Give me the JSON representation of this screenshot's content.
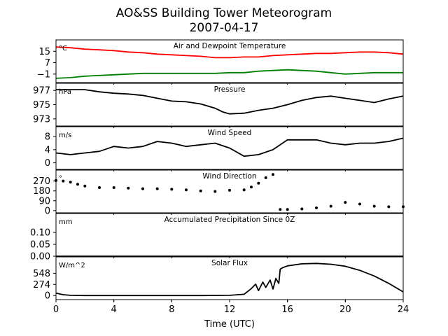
{
  "figure": {
    "title": "AO&SS Building Tower Meteorogram",
    "subtitle": "2007-04-17",
    "xlabel": "Time (UTC)",
    "xticks": [
      0,
      4,
      8,
      12,
      16,
      20,
      24
    ]
  },
  "chart_data": [
    {
      "type": "line",
      "title": "Air and Dewpoint Temperature",
      "unit": "°C",
      "xlabel": "Time (UTC)",
      "xlim": [
        0,
        24
      ],
      "ylim": [
        -7,
        23
      ],
      "yticks": [
        -1,
        7,
        15
      ],
      "series": [
        {
          "color": "#ff0000",
          "x": [
            0,
            1,
            2,
            3,
            4,
            5,
            6,
            7,
            8,
            9,
            10,
            11,
            12,
            13,
            14,
            15,
            16,
            17,
            18,
            19,
            20,
            21,
            22,
            23,
            24
          ],
          "values": [
            18,
            17.5,
            16.5,
            16,
            15.5,
            14.5,
            14,
            13,
            12.5,
            12,
            11.5,
            10.5,
            10.5,
            11,
            11,
            12,
            12.5,
            13,
            13.5,
            13.5,
            14,
            14.5,
            14.5,
            14,
            13
          ]
        },
        {
          "color": "#008000",
          "x": [
            0,
            1,
            2,
            3,
            4,
            5,
            6,
            7,
            8,
            9,
            10,
            11,
            12,
            13,
            14,
            15,
            16,
            17,
            18,
            19,
            20,
            21,
            22,
            23,
            24
          ],
          "values": [
            -4,
            -3.5,
            -2.5,
            -2,
            -1.5,
            -1,
            -0.5,
            -0.5,
            -0.5,
            -0.5,
            -0.5,
            -0.5,
            0,
            0,
            1,
            1.5,
            2,
            1.5,
            1,
            0,
            -1,
            -0.5,
            0,
            0,
            0
          ]
        }
      ]
    },
    {
      "type": "line",
      "title": "Pressure",
      "unit": "hPa",
      "xlim": [
        0,
        24
      ],
      "ylim": [
        972,
        978
      ],
      "yticks": [
        973,
        975,
        977
      ],
      "series": [
        {
          "color": "#000000",
          "x": [
            0,
            1,
            2,
            3,
            4,
            5,
            6,
            7,
            8,
            9,
            10,
            11,
            11.5,
            12,
            13,
            14,
            15,
            16,
            17,
            18,
            19,
            20,
            21,
            22,
            23,
            24
          ],
          "values": [
            977.1,
            977.1,
            977.1,
            976.8,
            976.6,
            976.5,
            976.3,
            975.9,
            975.5,
            975.4,
            975.1,
            974.5,
            974,
            973.7,
            973.8,
            974.2,
            974.5,
            975,
            975.6,
            976,
            976.2,
            975.9,
            975.6,
            975.3,
            975.8,
            976.2
          ]
        }
      ]
    },
    {
      "type": "line",
      "title": "Wind Speed",
      "unit": "m/s",
      "xlim": [
        0,
        24
      ],
      "ylim": [
        -2,
        11
      ],
      "yticks": [
        0,
        4,
        8
      ],
      "series": [
        {
          "color": "#000000",
          "x": [
            0,
            1,
            2,
            3,
            4,
            5,
            6,
            7,
            8,
            9,
            10,
            11,
            12,
            13,
            14,
            15,
            16,
            17,
            18,
            19,
            20,
            21,
            22,
            23,
            24
          ],
          "values": [
            3,
            2.5,
            3,
            3.5,
            5,
            4.5,
            5,
            6.5,
            6,
            5,
            5.5,
            6,
            4.5,
            2,
            2.5,
            4,
            7,
            7,
            7,
            6,
            5.5,
            6,
            6,
            6.5,
            7.5
          ]
        }
      ]
    },
    {
      "type": "scatter",
      "title": "Wind Direction",
      "unit": "°",
      "xlim": [
        0,
        24
      ],
      "ylim": [
        -20,
        370
      ],
      "yticks": [
        0,
        90,
        180,
        270
      ],
      "series": [
        {
          "color": "#000000",
          "x": [
            0,
            0.5,
            1,
            1.5,
            2,
            3,
            4,
            5,
            6,
            7,
            8,
            9,
            10,
            11,
            12,
            13,
            13.5,
            14,
            14.5,
            15,
            15.5,
            16,
            17,
            18,
            19,
            20,
            21,
            22,
            23,
            24
          ],
          "values": [
            275,
            270,
            260,
            240,
            225,
            210,
            210,
            205,
            200,
            200,
            195,
            190,
            180,
            175,
            185,
            190,
            215,
            250,
            300,
            330,
            10,
            10,
            15,
            25,
            40,
            75,
            60,
            40,
            35,
            35
          ]
        }
      ]
    },
    {
      "type": "line",
      "title": "Accumulated Precipitation Since 0Z",
      "unit": "mm",
      "xlim": [
        0,
        24
      ],
      "ylim": [
        0,
        0.18
      ],
      "yticks": [
        0.0,
        0.05,
        0.1
      ],
      "ytick_labels": [
        "0.00",
        "0.05",
        "0.10"
      ],
      "series": [
        {
          "color": "#000000",
          "x": [
            0,
            24
          ],
          "values": [
            0,
            0
          ]
        }
      ]
    },
    {
      "type": "line",
      "title": "Solar Flux",
      "unit": "W/m^2",
      "xlim": [
        0,
        24
      ],
      "ylim": [
        -100,
        950
      ],
      "yticks": [
        0,
        274,
        548
      ],
      "series": [
        {
          "color": "#000000",
          "x": [
            0,
            0.5,
            1,
            2,
            4,
            6,
            8,
            10,
            12,
            13,
            13.5,
            13.8,
            14,
            14.3,
            14.5,
            14.8,
            15,
            15.2,
            15.4,
            15.5,
            15.7,
            16,
            17,
            18,
            19,
            20,
            21,
            22,
            23,
            24
          ],
          "values": [
            60,
            20,
            5,
            0,
            0,
            0,
            0,
            0,
            5,
            30,
            170,
            280,
            120,
            330,
            200,
            380,
            160,
            420,
            300,
            650,
            690,
            730,
            780,
            790,
            770,
            720,
            620,
            480,
            300,
            90
          ]
        }
      ]
    }
  ]
}
